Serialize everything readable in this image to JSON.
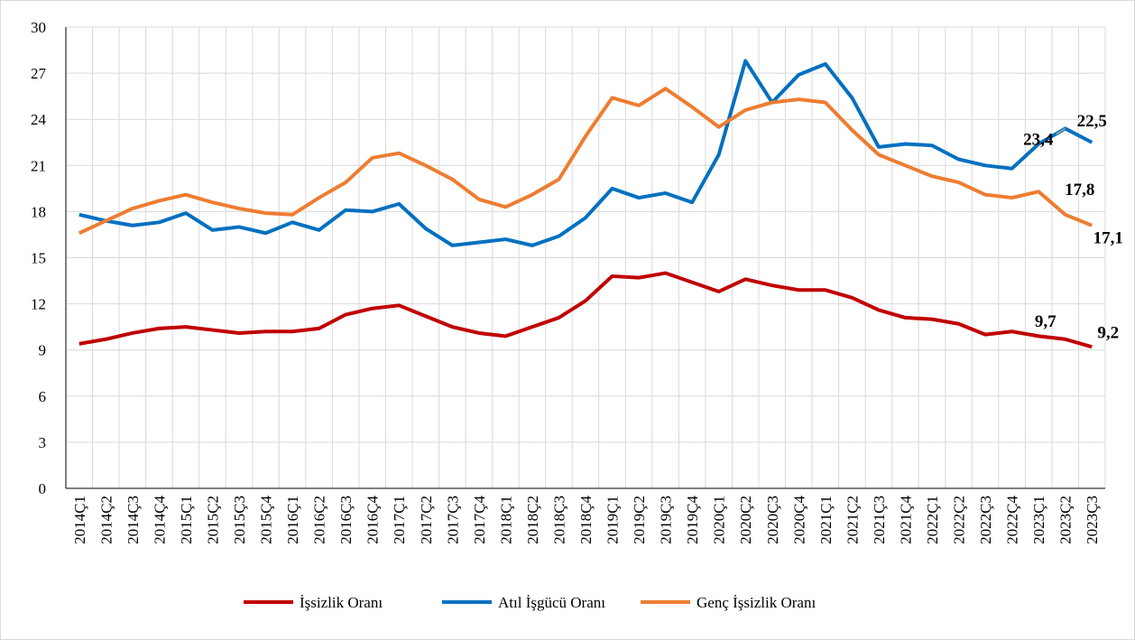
{
  "chart_data": {
    "type": "line",
    "categories": [
      "2014Ç1",
      "2014Ç2",
      "2014Ç3",
      "2014Ç4",
      "2015Ç1",
      "2015Ç2",
      "2015Ç3",
      "2015Ç4",
      "2016Ç1",
      "2016Ç2",
      "2016Ç3",
      "2016Ç4",
      "2017Ç1",
      "2017Ç2",
      "2017Ç3",
      "2017Ç4",
      "2018Ç1",
      "2018Ç2",
      "2018Ç3",
      "2018Ç4",
      "2019Ç1",
      "2019Ç2",
      "2019Ç3",
      "2019Ç4",
      "2020Ç1",
      "2020Ç2",
      "2020Ç3",
      "2020Ç4",
      "2021Ç1",
      "2021Ç2",
      "2021Ç3",
      "2021Ç4",
      "2022Ç1",
      "2022Ç2",
      "2022Ç3",
      "2022Ç4",
      "2023Ç1",
      "2023Ç2",
      "2023Ç3"
    ],
    "series": [
      {
        "name": "İşsizlik Oranı",
        "color": "#c00000",
        "values": [
          9.4,
          9.7,
          10.1,
          10.4,
          10.5,
          10.3,
          10.1,
          10.2,
          10.2,
          10.4,
          11.3,
          11.7,
          11.9,
          11.2,
          10.5,
          10.1,
          9.9,
          10.5,
          11.1,
          12.2,
          13.8,
          13.7,
          14.0,
          13.4,
          12.8,
          13.6,
          13.2,
          12.9,
          12.9,
          12.4,
          11.6,
          11.1,
          11.0,
          10.7,
          10.0,
          10.2,
          9.9,
          9.7,
          9.2
        ],
        "value_labels": [
          null,
          null,
          null,
          null,
          null,
          null,
          null,
          null,
          null,
          null,
          null,
          null,
          null,
          null,
          null,
          null,
          null,
          null,
          null,
          null,
          null,
          null,
          null,
          null,
          null,
          null,
          null,
          null,
          null,
          null,
          null,
          null,
          null,
          null,
          null,
          null,
          null,
          "9,7",
          "9,2"
        ]
      },
      {
        "name": "Atıl İşgücü Oranı",
        "color": "#0070c0",
        "values": [
          17.8,
          17.4,
          17.1,
          17.3,
          17.9,
          16.8,
          17.0,
          16.6,
          17.3,
          16.8,
          18.1,
          18.0,
          18.5,
          16.9,
          15.8,
          16.0,
          16.2,
          15.8,
          16.4,
          17.6,
          19.5,
          18.9,
          19.2,
          18.6,
          21.7,
          27.8,
          25.1,
          26.9,
          27.6,
          25.4,
          22.2,
          22.4,
          22.3,
          21.4,
          21.0,
          20.8,
          22.4,
          23.4,
          22.5
        ],
        "value_labels": [
          null,
          null,
          null,
          null,
          null,
          null,
          null,
          null,
          null,
          null,
          null,
          null,
          null,
          null,
          null,
          null,
          null,
          null,
          null,
          null,
          null,
          null,
          null,
          null,
          null,
          null,
          null,
          null,
          null,
          null,
          null,
          null,
          null,
          null,
          null,
          null,
          null,
          "23,4",
          "22,5"
        ]
      },
      {
        "name": "Genç İşsizlik Oranı",
        "color": "#ed7d31",
        "values": [
          16.6,
          17.4,
          18.2,
          18.7,
          19.1,
          18.6,
          18.2,
          17.9,
          17.8,
          18.9,
          19.9,
          21.5,
          21.8,
          21.0,
          20.1,
          18.8,
          18.3,
          19.1,
          20.1,
          22.9,
          25.4,
          24.9,
          26.0,
          24.8,
          23.5,
          24.6,
          25.1,
          25.3,
          25.1,
          23.3,
          21.7,
          21.0,
          20.3,
          19.9,
          19.1,
          18.9,
          19.3,
          17.8,
          17.1
        ],
        "value_labels": [
          null,
          null,
          null,
          null,
          null,
          null,
          null,
          null,
          null,
          null,
          null,
          null,
          null,
          null,
          null,
          null,
          null,
          null,
          null,
          null,
          null,
          null,
          null,
          null,
          null,
          null,
          null,
          null,
          null,
          null,
          null,
          null,
          null,
          null,
          null,
          null,
          null,
          "17,8",
          "17,1"
        ]
      }
    ],
    "ylim": [
      0,
      30
    ],
    "yticks": [
      0,
      3,
      6,
      9,
      12,
      15,
      18,
      21,
      24,
      27,
      30
    ],
    "grid": true,
    "legend": "bottom"
  }
}
